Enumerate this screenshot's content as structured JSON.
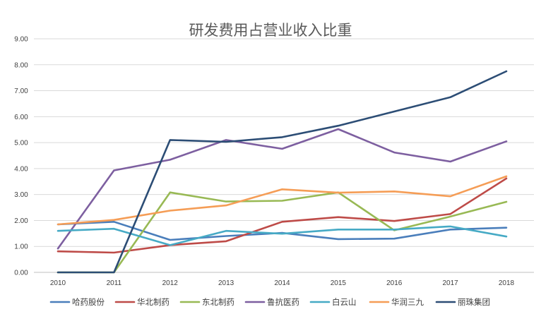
{
  "chart_data": {
    "type": "line",
    "title": "研发费用占营业收入比重",
    "xlabel": "",
    "ylabel": "",
    "categories": [
      "2010",
      "2011",
      "2012",
      "2013",
      "2014",
      "2015",
      "2016",
      "2017",
      "2018"
    ],
    "ylim": [
      0,
      9
    ],
    "y_ticks": [
      "0.00",
      "1.00",
      "2.00",
      "3.00",
      "4.00",
      "5.00",
      "6.00",
      "7.00",
      "8.00",
      "9.00"
    ],
    "grid": true,
    "legend_position": "bottom",
    "series": [
      {
        "name": "哈药股份",
        "color": "#4a7ebb",
        "values": [
          1.85,
          1.95,
          1.25,
          1.4,
          1.52,
          1.28,
          1.3,
          1.65,
          1.72
        ]
      },
      {
        "name": "华北制药",
        "color": "#be4b48",
        "values": [
          0.81,
          0.76,
          1.05,
          1.2,
          1.95,
          2.13,
          1.98,
          2.25,
          3.62
        ]
      },
      {
        "name": "东北制药",
        "color": "#98b954",
        "values": [
          0.0,
          0.0,
          3.08,
          2.73,
          2.76,
          3.08,
          1.62,
          2.15,
          2.72
        ]
      },
      {
        "name": "鲁抗医药",
        "color": "#7d5fa0",
        "values": [
          0.92,
          3.93,
          4.34,
          5.1,
          4.76,
          5.52,
          4.62,
          4.27,
          5.05
        ]
      },
      {
        "name": "白云山",
        "color": "#46aac5",
        "values": [
          1.6,
          1.68,
          1.05,
          1.6,
          1.49,
          1.65,
          1.65,
          1.77,
          1.38
        ]
      },
      {
        "name": "华润三九",
        "color": "#f59d56",
        "values": [
          1.85,
          2.02,
          2.38,
          2.58,
          3.2,
          3.07,
          3.12,
          2.93,
          3.7
        ]
      },
      {
        "name": "丽珠集团",
        "color": "#2c4d75",
        "values": [
          0.0,
          0.0,
          5.1,
          5.03,
          5.21,
          5.65,
          6.2,
          6.75,
          7.75
        ]
      }
    ]
  }
}
